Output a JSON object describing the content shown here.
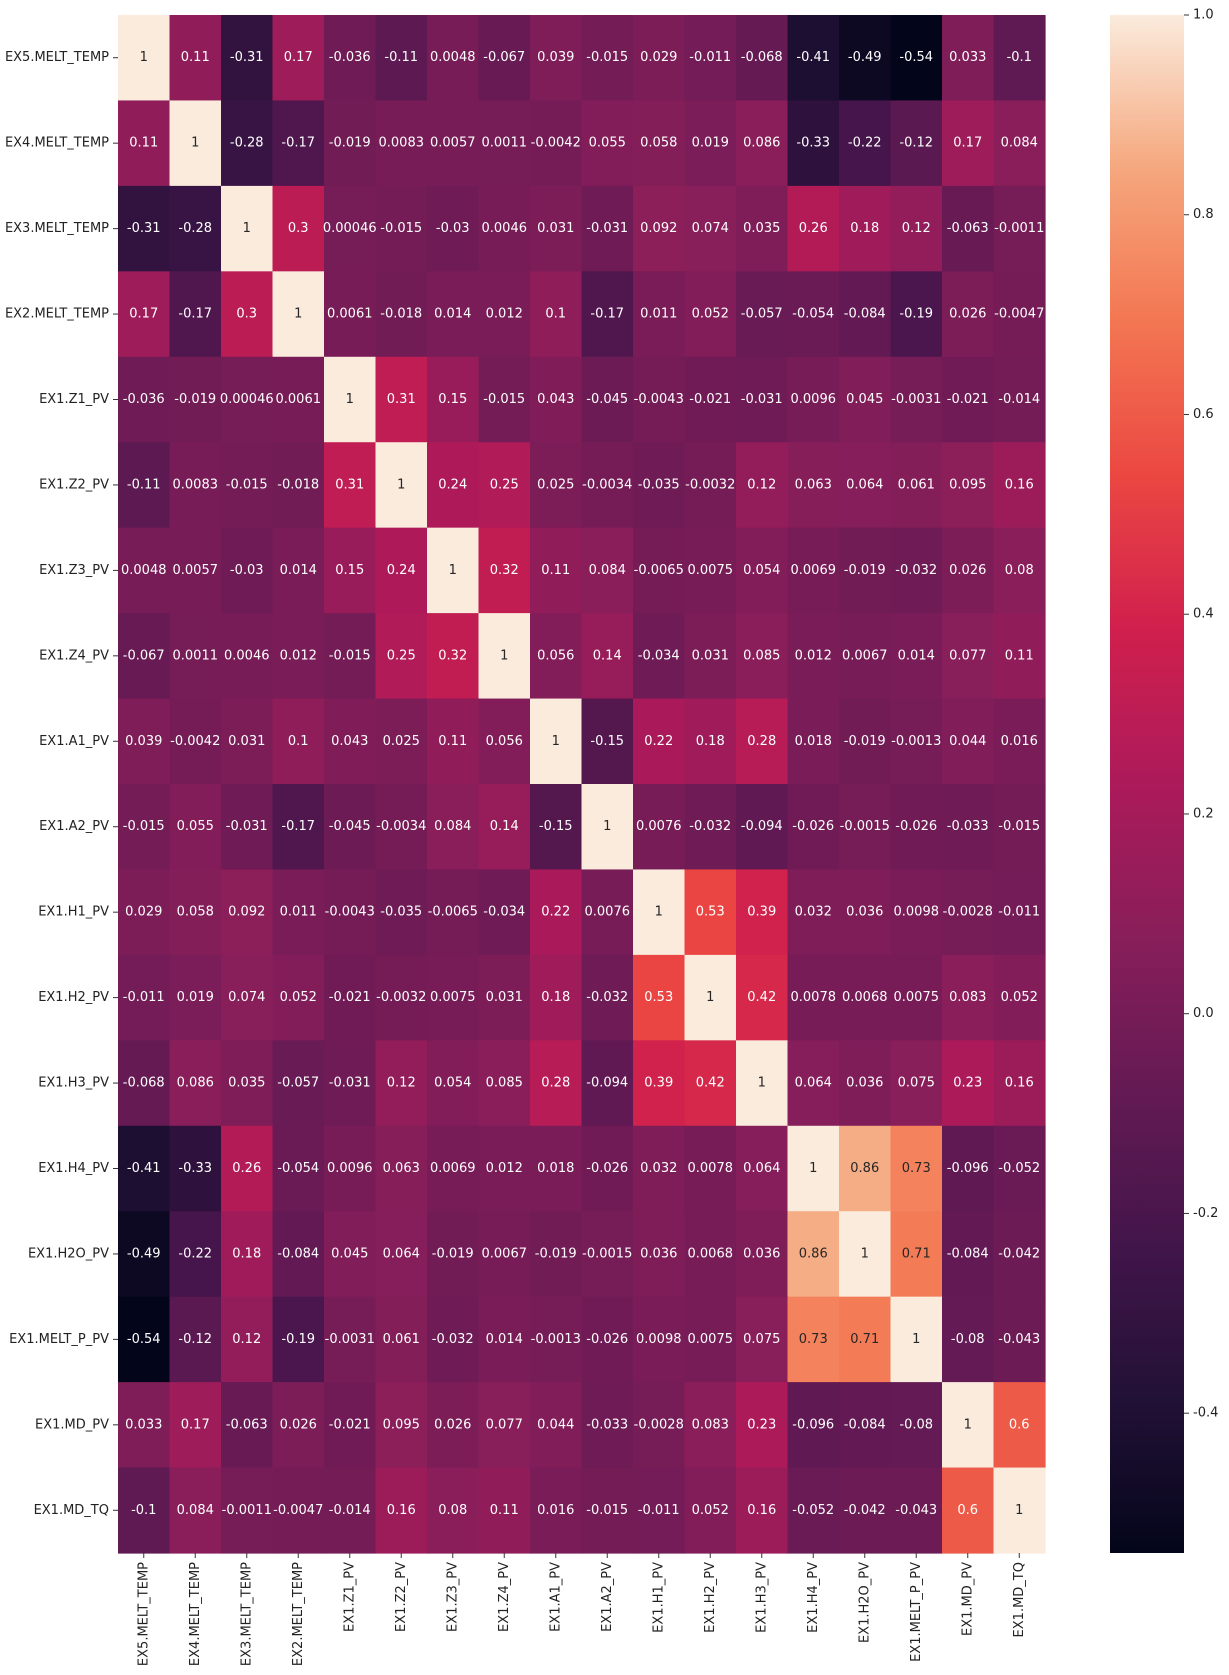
{
  "chart_data": {
    "type": "heatmap",
    "title": "",
    "xlabel": "",
    "ylabel": "",
    "colormap": "rocket",
    "annotate": true,
    "vmin": -0.54,
    "vmax": 1.0,
    "colorbar_ticks": [
      1.0,
      0.8,
      0.6,
      0.4,
      0.2,
      0.0,
      -0.2,
      -0.4
    ],
    "colorbar_tick_labels": [
      "1.0",
      "0.8",
      "0.6",
      "0.4",
      "0.2",
      "0.0",
      "-0.2",
      "-0.4"
    ],
    "labels": [
      "EX5.MELT_TEMP",
      "EX4.MELT_TEMP",
      "EX3.MELT_TEMP",
      "EX2.MELT_TEMP",
      "EX1.Z1_PV",
      "EX1.Z2_PV",
      "EX1.Z3_PV",
      "EX1.Z4_PV",
      "EX1.A1_PV",
      "EX1.A2_PV",
      "EX1.H1_PV",
      "EX1.H2_PV",
      "EX1.H3_PV",
      "EX1.H4_PV",
      "EX1.H2O_PV",
      "EX1.MELT_P_PV",
      "EX1.MD_PV",
      "EX1.MD_TQ"
    ],
    "matrix": [
      [
        "1",
        "0.11",
        "-0.31",
        "0.17",
        "-0.036",
        "-0.11",
        "0.0048",
        "-0.067",
        "0.039",
        "-0.015",
        "0.029",
        "-0.011",
        "-0.068",
        "-0.41",
        "-0.49",
        "-0.54",
        "0.033",
        "-0.1"
      ],
      [
        "0.11",
        "1",
        "-0.28",
        "-0.17",
        "-0.019",
        "0.0083",
        "0.0057",
        "0.0011",
        "-0.0042",
        "0.055",
        "0.058",
        "0.019",
        "0.086",
        "-0.33",
        "-0.22",
        "-0.12",
        "0.17",
        "0.084"
      ],
      [
        "-0.31",
        "-0.28",
        "1",
        "0.3",
        "0.00046",
        "-0.015",
        "-0.03",
        "0.0046",
        "0.031",
        "-0.031",
        "0.092",
        "0.074",
        "0.035",
        "0.26",
        "0.18",
        "0.12",
        "-0.063",
        "-0.0011"
      ],
      [
        "0.17",
        "-0.17",
        "0.3",
        "1",
        "0.0061",
        "-0.018",
        "0.014",
        "0.012",
        "0.1",
        "-0.17",
        "0.011",
        "0.052",
        "-0.057",
        "-0.054",
        "-0.084",
        "-0.19",
        "0.026",
        "-0.0047"
      ],
      [
        "-0.036",
        "-0.019",
        "0.00046",
        "0.0061",
        "1",
        "0.31",
        "0.15",
        "-0.015",
        "0.043",
        "-0.045",
        "-0.0043",
        "-0.021",
        "-0.031",
        "0.0096",
        "0.045",
        "-0.0031",
        "-0.021",
        "-0.014"
      ],
      [
        "-0.11",
        "0.0083",
        "-0.015",
        "-0.018",
        "0.31",
        "1",
        "0.24",
        "0.25",
        "0.025",
        "-0.0034",
        "-0.035",
        "-0.0032",
        "0.12",
        "0.063",
        "0.064",
        "0.061",
        "0.095",
        "0.16"
      ],
      [
        "0.0048",
        "0.0057",
        "-0.03",
        "0.014",
        "0.15",
        "0.24",
        "1",
        "0.32",
        "0.11",
        "0.084",
        "-0.0065",
        "0.0075",
        "0.054",
        "0.0069",
        "-0.019",
        "-0.032",
        "0.026",
        "0.08"
      ],
      [
        "-0.067",
        "0.0011",
        "0.0046",
        "0.012",
        "-0.015",
        "0.25",
        "0.32",
        "1",
        "0.056",
        "0.14",
        "-0.034",
        "0.031",
        "0.085",
        "0.012",
        "0.0067",
        "0.014",
        "0.077",
        "0.11"
      ],
      [
        "0.039",
        "-0.0042",
        "0.031",
        "0.1",
        "0.043",
        "0.025",
        "0.11",
        "0.056",
        "1",
        "-0.15",
        "0.22",
        "0.18",
        "0.28",
        "0.018",
        "-0.019",
        "-0.0013",
        "0.044",
        "0.016"
      ],
      [
        "-0.015",
        "0.055",
        "-0.031",
        "-0.17",
        "-0.045",
        "-0.0034",
        "0.084",
        "0.14",
        "-0.15",
        "1",
        "0.0076",
        "-0.032",
        "-0.094",
        "-0.026",
        "-0.0015",
        "-0.026",
        "-0.033",
        "-0.015"
      ],
      [
        "0.029",
        "0.058",
        "0.092",
        "0.011",
        "-0.0043",
        "-0.035",
        "-0.0065",
        "-0.034",
        "0.22",
        "0.0076",
        "1",
        "0.53",
        "0.39",
        "0.032",
        "0.036",
        "0.0098",
        "-0.0028",
        "-0.011"
      ],
      [
        "-0.011",
        "0.019",
        "0.074",
        "0.052",
        "-0.021",
        "-0.0032",
        "0.0075",
        "0.031",
        "0.18",
        "-0.032",
        "0.53",
        "1",
        "0.42",
        "0.0078",
        "0.0068",
        "0.0075",
        "0.083",
        "0.052"
      ],
      [
        "-0.068",
        "0.086",
        "0.035",
        "-0.057",
        "-0.031",
        "0.12",
        "0.054",
        "0.085",
        "0.28",
        "-0.094",
        "0.39",
        "0.42",
        "1",
        "0.064",
        "0.036",
        "0.075",
        "0.23",
        "0.16"
      ],
      [
        "-0.41",
        "-0.33",
        "0.26",
        "-0.054",
        "0.0096",
        "0.063",
        "0.0069",
        "0.012",
        "0.018",
        "-0.026",
        "0.032",
        "0.0078",
        "0.064",
        "1",
        "0.86",
        "0.73",
        "-0.096",
        "-0.052"
      ],
      [
        "-0.49",
        "-0.22",
        "0.18",
        "-0.084",
        "0.045",
        "0.064",
        "-0.019",
        "0.0067",
        "-0.019",
        "-0.0015",
        "0.036",
        "0.0068",
        "0.036",
        "0.86",
        "1",
        "0.71",
        "-0.084",
        "-0.042"
      ],
      [
        "-0.54",
        "-0.12",
        "0.12",
        "-0.19",
        "-0.0031",
        "0.061",
        "-0.032",
        "0.014",
        "-0.0013",
        "-0.026",
        "0.0098",
        "0.0075",
        "0.075",
        "0.73",
        "0.71",
        "1",
        "-0.08",
        "-0.043"
      ],
      [
        "0.033",
        "0.17",
        "-0.063",
        "0.026",
        "-0.021",
        "0.095",
        "0.026",
        "0.077",
        "0.044",
        "-0.033",
        "-0.0028",
        "0.083",
        "0.23",
        "-0.096",
        "-0.084",
        "-0.08",
        "1",
        "0.6"
      ],
      [
        "-0.1",
        "0.084",
        "-0.0011",
        "-0.0047",
        "-0.014",
        "0.16",
        "0.08",
        "0.11",
        "0.016",
        "-0.015",
        "-0.011",
        "0.052",
        "0.16",
        "-0.052",
        "-0.042",
        "-0.043",
        "0.6",
        "1"
      ]
    ]
  }
}
